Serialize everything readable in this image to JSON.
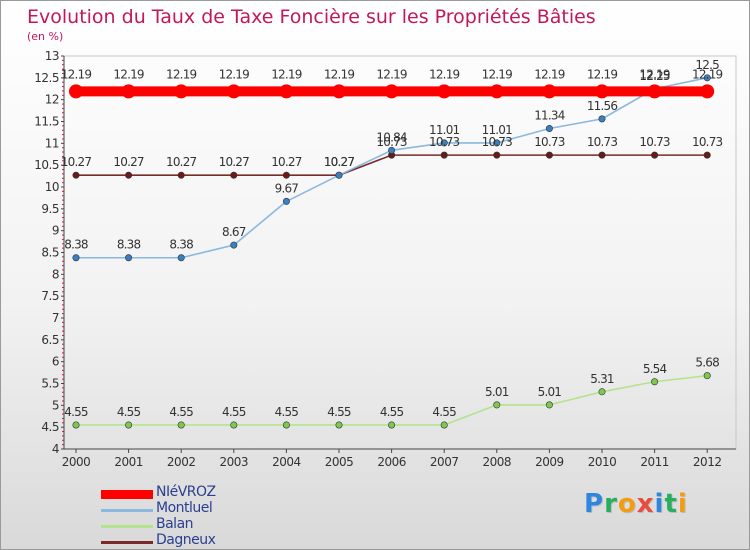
{
  "chart_data": {
    "type": "line",
    "title": "Evolution du Taux de Taxe Foncière sur les Propriétés Bâties",
    "unit_label": "(en %)",
    "x": [
      "2000",
      "2001",
      "2002",
      "2003",
      "2004",
      "2005",
      "2006",
      "2007",
      "2008",
      "2009",
      "2010",
      "2011",
      "2012"
    ],
    "ylim": [
      4,
      13
    ],
    "yticks": [
      "4",
      "4.5",
      "5",
      "5.5",
      "6",
      "6.5",
      "7",
      "7.5",
      "8",
      "8.5",
      "9",
      "9.5",
      "10",
      "10.5",
      "11",
      "11.5",
      "12",
      "12.5",
      "13"
    ],
    "grid": false,
    "legend_position": "bottom-left",
    "series": [
      {
        "name": "NIéVROZ",
        "color": "#ff0000",
        "values": [
          12.19,
          12.19,
          12.19,
          12.19,
          12.19,
          12.19,
          12.19,
          12.19,
          12.19,
          12.19,
          12.19,
          12.19,
          12.19
        ],
        "labels": [
          "12.19",
          "12.19",
          "12.19",
          "12.19",
          "12.19",
          "12.19",
          "12.19",
          "12.19",
          "12.19",
          "12.19",
          "12.19",
          "12.19",
          "12.19"
        ]
      },
      {
        "name": "Montluel",
        "color": "#4a90c8",
        "values": [
          8.38,
          8.38,
          8.38,
          8.67,
          9.67,
          10.27,
          10.84,
          11.01,
          11.01,
          11.34,
          11.56,
          12.25,
          12.5
        ],
        "labels": [
          "8.38",
          "8.38",
          "8.38",
          "8.67",
          "9.67",
          "10.27",
          "10.84",
          "11.01",
          "11.01",
          "11.34",
          "11.56",
          "12.25",
          "12.5"
        ]
      },
      {
        "name": "Balan",
        "color": "#8fd35a",
        "values": [
          4.55,
          4.55,
          4.55,
          4.55,
          4.55,
          4.55,
          4.55,
          4.55,
          5.01,
          5.01,
          5.31,
          5.54,
          5.68
        ],
        "labels": [
          "4.55",
          "4.55",
          "4.55",
          "4.55",
          "4.55",
          "4.55",
          "4.55",
          "4.55",
          "5.01",
          "5.01",
          "5.31",
          "5.54",
          "5.68"
        ]
      },
      {
        "name": "Dagneux",
        "color": "#6b1a1a",
        "values": [
          10.27,
          10.27,
          10.27,
          10.27,
          10.27,
          10.27,
          10.73,
          10.73,
          10.73,
          10.73,
          10.73,
          10.73,
          10.73
        ],
        "labels": [
          "10.27",
          "10.27",
          "10.27",
          "10.27",
          "10.27",
          "10.27",
          "10.73",
          "10.73",
          "10.73",
          "10.73",
          "10.73",
          "10.73",
          "10.73"
        ]
      }
    ]
  },
  "logo": {
    "text": "Proxiti",
    "letters": [
      {
        "ch": "P",
        "color": "#2e86de"
      },
      {
        "ch": "r",
        "color": "#27ae60"
      },
      {
        "ch": "o",
        "color": "#f39c12"
      },
      {
        "ch": "x",
        "color": "#e74c3c"
      },
      {
        "ch": "i",
        "color": "#2e86de"
      },
      {
        "ch": "t",
        "color": "#27ae60"
      },
      {
        "ch": "i",
        "color": "#f39c12"
      }
    ]
  }
}
